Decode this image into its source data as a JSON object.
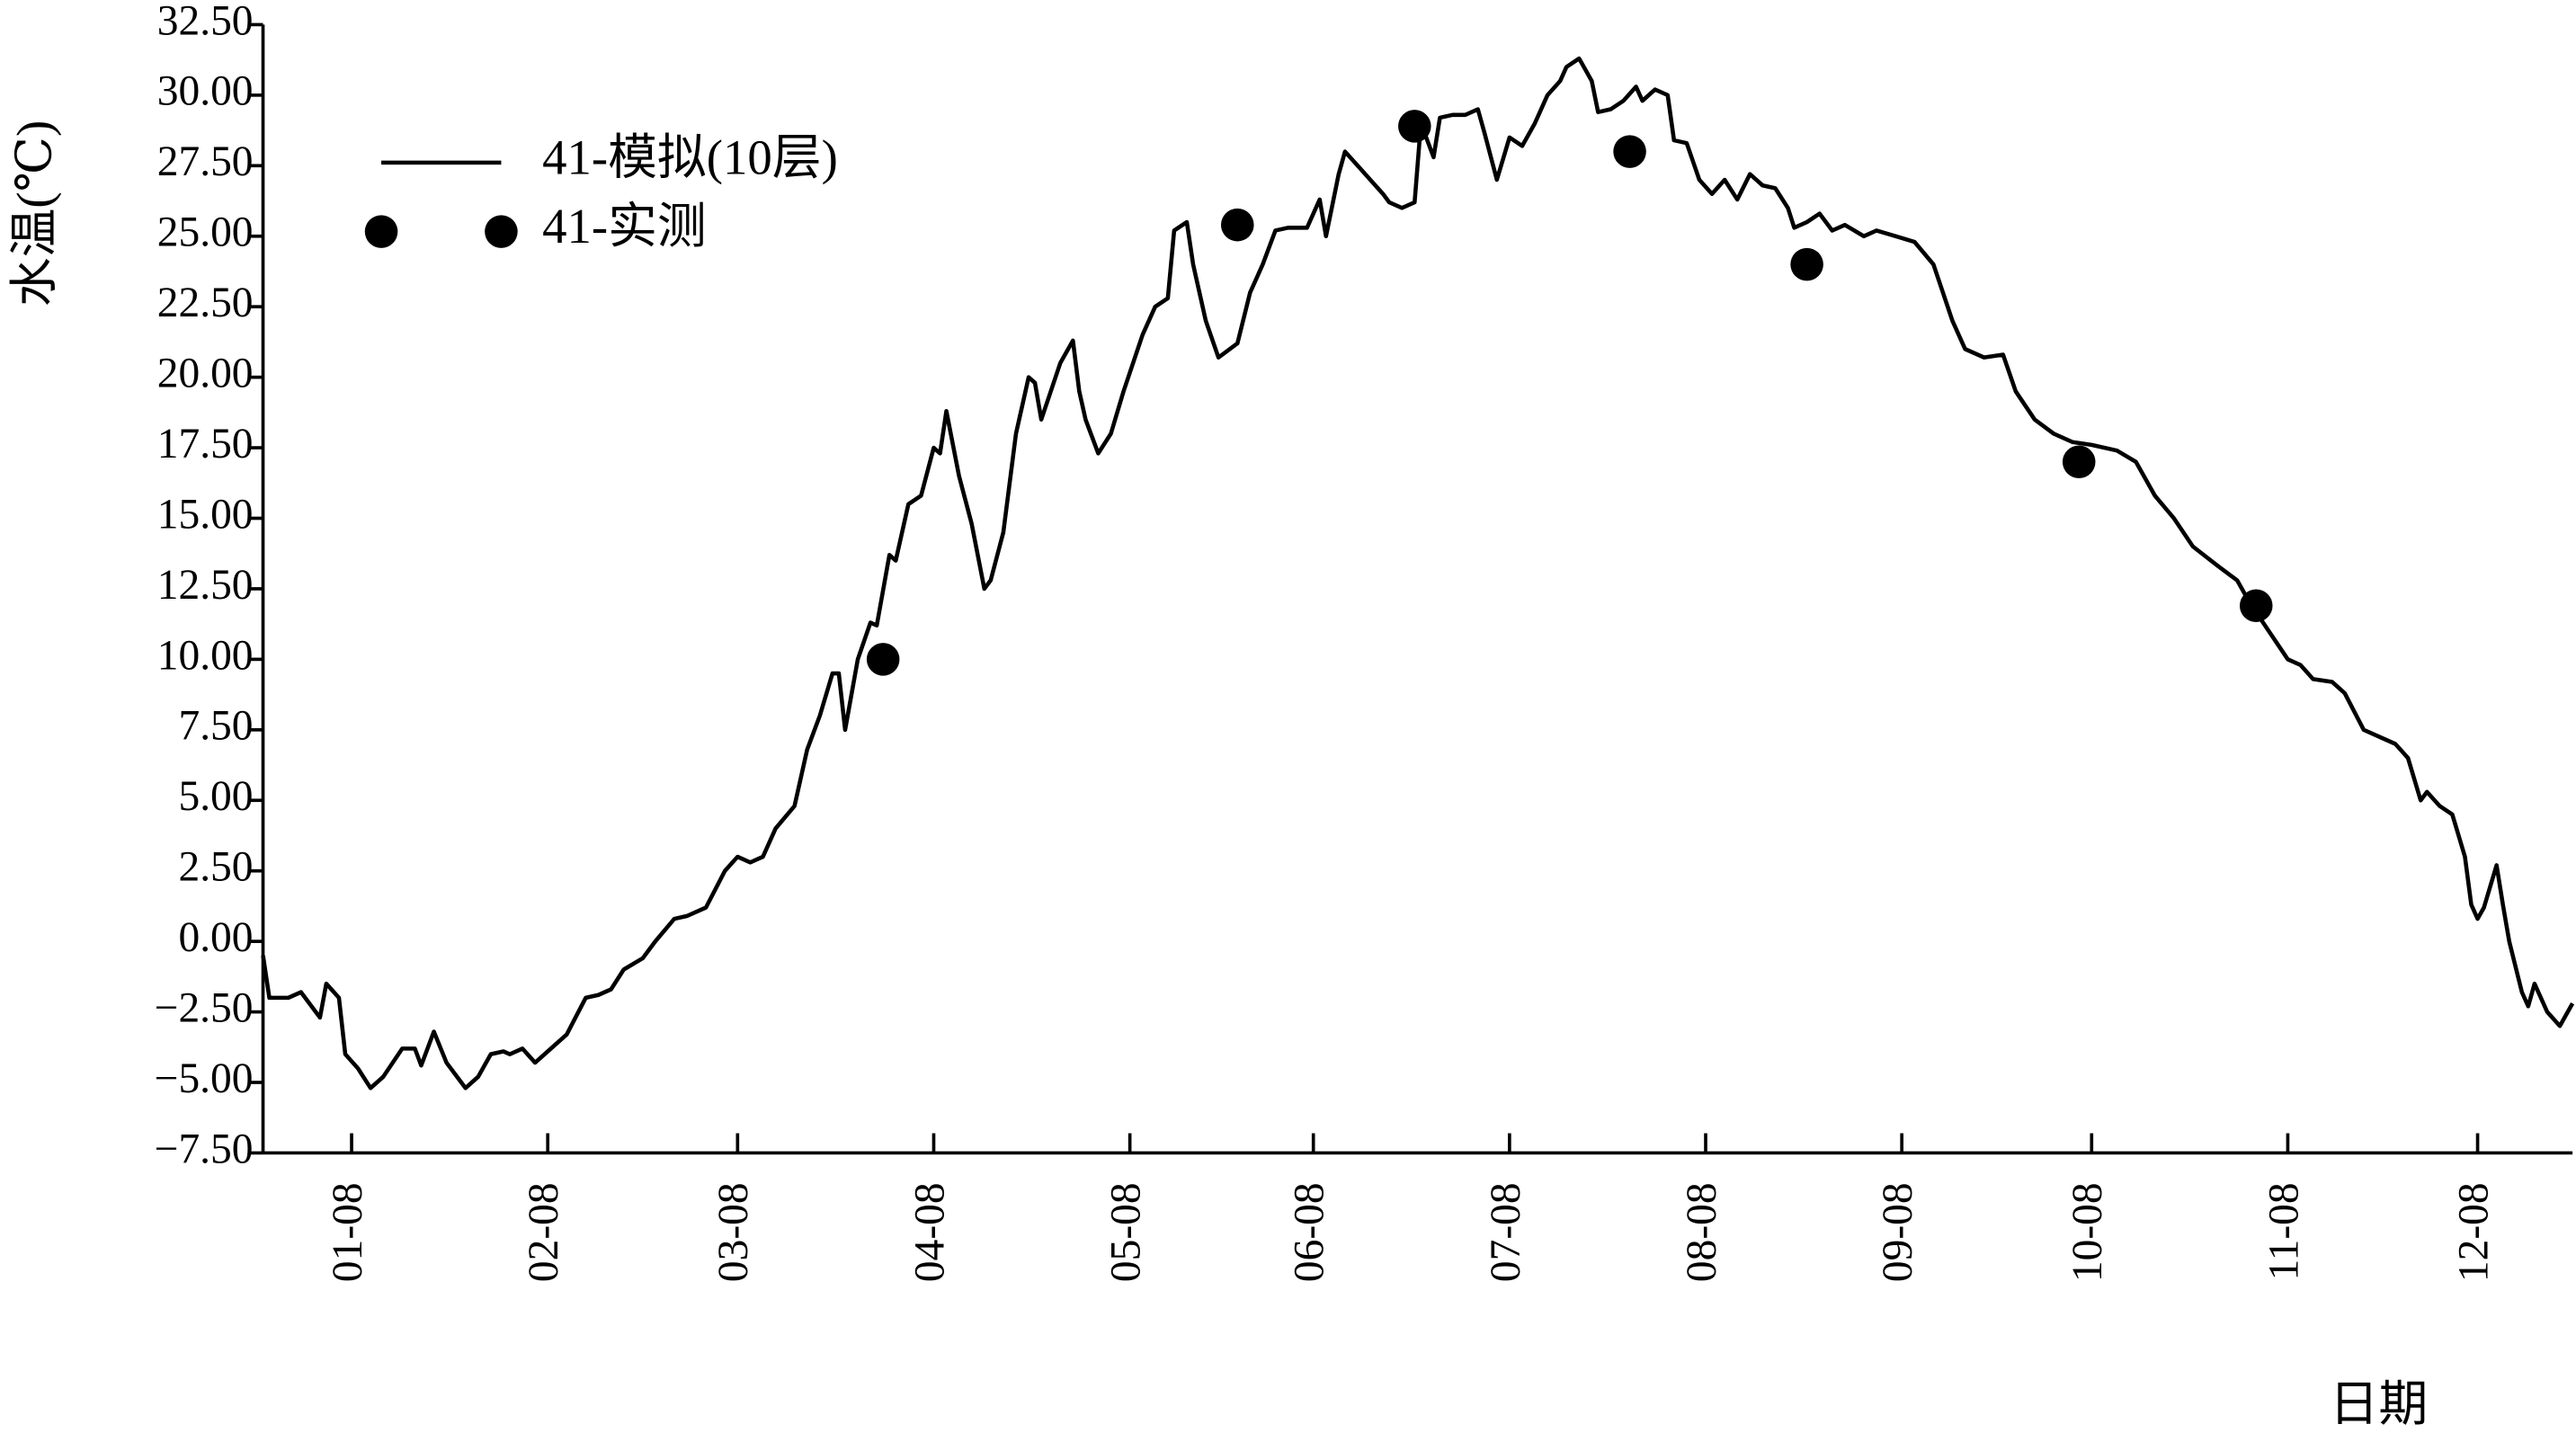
{
  "chart_data": {
    "type": "line",
    "y_label": "水温(℃)",
    "x_label": "日期",
    "xlim": [
      0,
      365
    ],
    "xticks": [
      {
        "value": 14,
        "label": "01-08"
      },
      {
        "value": 45,
        "label": "02-08"
      },
      {
        "value": 75,
        "label": "03-08"
      },
      {
        "value": 106,
        "label": "04-08"
      },
      {
        "value": 137,
        "label": "05-08"
      },
      {
        "value": 166,
        "label": "06-08"
      },
      {
        "value": 197,
        "label": "07-08"
      },
      {
        "value": 228,
        "label": "08-08"
      },
      {
        "value": 259,
        "label": "09-08"
      },
      {
        "value": 289,
        "label": "10-08"
      },
      {
        "value": 320,
        "label": "11-08"
      },
      {
        "value": 350,
        "label": "12-08"
      }
    ],
    "ylim": [
      -7.5,
      32.5
    ],
    "yticks": [
      {
        "value": -7.5,
        "label": "−7.50"
      },
      {
        "value": -5,
        "label": "−5.00"
      },
      {
        "value": -2.5,
        "label": "−2.50"
      },
      {
        "value": 0,
        "label": "0.00"
      },
      {
        "value": 2.5,
        "label": "2.50"
      },
      {
        "value": 5,
        "label": "5.00"
      },
      {
        "value": 7.5,
        "label": "7.50"
      },
      {
        "value": 10,
        "label": "10.00"
      },
      {
        "value": 12.5,
        "label": "12.50"
      },
      {
        "value": 15,
        "label": "15.00"
      },
      {
        "value": 17.5,
        "label": "17.50"
      },
      {
        "value": 20,
        "label": "20.00"
      },
      {
        "value": 22.5,
        "label": "22.50"
      },
      {
        "value": 25,
        "label": "25.00"
      },
      {
        "value": 27.5,
        "label": "27.50"
      },
      {
        "value": 30,
        "label": "30.00"
      },
      {
        "value": 32.5,
        "label": "32.50"
      }
    ],
    "legend": "upper-left",
    "series": [
      {
        "name": "41-模拟(10层)",
        "color": "#000000",
        "style": "line",
        "x": [
          0,
          1,
          4,
          6,
          9,
          10,
          12,
          13,
          15,
          17,
          19,
          22,
          24,
          25,
          27,
          29,
          32,
          34,
          36,
          38,
          39,
          41,
          43,
          45,
          48,
          51,
          53,
          55,
          57,
          60,
          62,
          65,
          67,
          70,
          73,
          75,
          77,
          79,
          81,
          84,
          86,
          88,
          90,
          91,
          92,
          94,
          96,
          97,
          99,
          100,
          102,
          104,
          106,
          107,
          108,
          110,
          112,
          114,
          115,
          117,
          119,
          121,
          122,
          123,
          126,
          128,
          129,
          130,
          132,
          134,
          136,
          139,
          141,
          143,
          144,
          146,
          147,
          149,
          151,
          154,
          156,
          158,
          160,
          162,
          165,
          167,
          168,
          170,
          171,
          173,
          175,
          177,
          178,
          180,
          182,
          183,
          185,
          186,
          188,
          190,
          192,
          193,
          195,
          197,
          199,
          201,
          203,
          205,
          206,
          208,
          210,
          211,
          213,
          215,
          217,
          218,
          220,
          222,
          223,
          225,
          227,
          229,
          231,
          233,
          235,
          237,
          239,
          241,
          242,
          244,
          246,
          248,
          250,
          253,
          255,
          258,
          261,
          264,
          267,
          269,
          272,
          275,
          277,
          280,
          283,
          286,
          289,
          293,
          296,
          299,
          302,
          305,
          309,
          312,
          314,
          317,
          320,
          322,
          324,
          327,
          329,
          332,
          335,
          337,
          339,
          341,
          342,
          344,
          346,
          348,
          349,
          350,
          351,
          353,
          354,
          355,
          357,
          358,
          359,
          361,
          363,
          365
        ],
        "values": [
          -0.5,
          -2.0,
          -2.0,
          -1.8,
          -2.7,
          -1.5,
          -2.0,
          -4.0,
          -4.5,
          -5.2,
          -4.8,
          -3.8,
          -3.8,
          -4.4,
          -3.2,
          -4.3,
          -5.2,
          -4.8,
          -4.0,
          -3.9,
          -4.0,
          -3.8,
          -4.3,
          -3.9,
          -3.3,
          -2.0,
          -1.9,
          -1.7,
          -1.0,
          -0.6,
          0.0,
          0.8,
          0.9,
          1.2,
          2.5,
          3.0,
          2.8,
          3.0,
          4.0,
          4.8,
          6.8,
          8.0,
          9.5,
          9.5,
          7.5,
          10.0,
          11.3,
          11.2,
          13.7,
          13.5,
          15.5,
          15.8,
          17.5,
          17.3,
          18.8,
          16.5,
          14.8,
          12.5,
          12.8,
          14.5,
          18.0,
          20.0,
          19.8,
          18.5,
          20.5,
          21.3,
          19.5,
          18.5,
          17.3,
          18.0,
          19.5,
          21.5,
          22.5,
          22.8,
          25.2,
          25.5,
          24.0,
          22.0,
          20.7,
          21.2,
          23.0,
          24.0,
          25.2,
          25.3,
          25.3,
          26.3,
          25.0,
          27.2,
          28.0,
          27.5,
          27.0,
          26.5,
          26.2,
          26.0,
          26.2,
          29.0,
          27.8,
          29.2,
          29.3,
          29.3,
          29.5,
          28.7,
          27.0,
          28.5,
          28.2,
          29.0,
          30.0,
          30.5,
          31.0,
          31.3,
          30.5,
          29.4,
          29.5,
          29.8,
          30.3,
          29.8,
          30.2,
          30.0,
          28.4,
          28.3,
          27.0,
          26.5,
          27.0,
          26.3,
          27.2,
          26.8,
          26.7,
          26.0,
          25.3,
          25.5,
          25.8,
          25.2,
          25.4,
          25.0,
          25.2,
          25.0,
          24.8,
          24.0,
          22.0,
          21.0,
          20.7,
          20.8,
          19.5,
          18.5,
          18.0,
          17.7,
          17.6,
          17.4,
          17.0,
          15.8,
          15.0,
          14.0,
          13.3,
          12.8,
          12.0,
          11.0,
          10.0,
          9.8,
          9.3,
          9.2,
          8.8,
          7.5,
          7.2,
          7.0,
          6.5,
          5.0,
          5.3,
          4.8,
          4.5,
          3.0,
          1.3,
          0.8,
          1.2,
          2.7,
          1.3,
          0.0,
          -1.8,
          -2.3,
          -1.5,
          -2.5,
          -3.0,
          -2.2
        ]
      },
      {
        "name": "41-实测",
        "color": "#000000",
        "style": "marker",
        "x": [
          98,
          154,
          182,
          216,
          244,
          287,
          315
        ],
        "values": [
          10.0,
          25.4,
          28.9,
          28.0,
          24.0,
          17.0,
          11.9
        ]
      }
    ]
  }
}
